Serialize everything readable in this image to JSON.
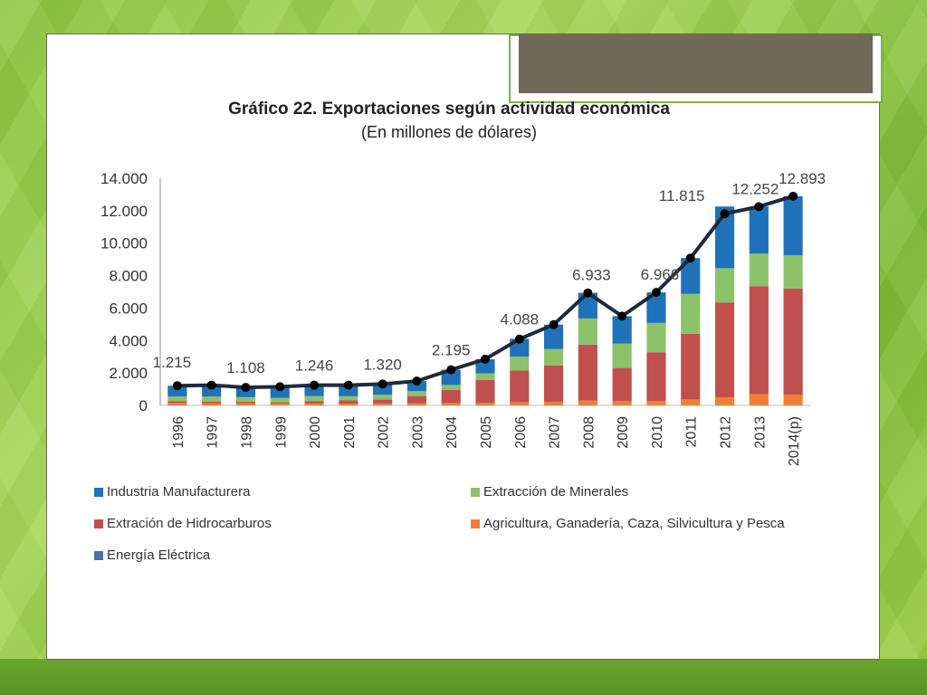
{
  "chart_data": {
    "type": "bar",
    "title": "Gráfico 22. Exportaciones según actividad económica",
    "subtitle": "(En millones de dólares)",
    "categories": [
      "1996",
      "1997",
      "1998",
      "1999",
      "2000",
      "2001",
      "2002",
      "2003",
      "2004",
      "2005",
      "2006",
      "2007",
      "2008",
      "2009",
      "2010",
      "2011",
      "2012",
      "2013",
      "2014(p)"
    ],
    "ylim": [
      0,
      14000
    ],
    "yticks": [
      "0",
      "2.000",
      "4.000",
      "6.000",
      "8.000",
      "10.000",
      "12.000",
      "14.000"
    ],
    "ytick_values": [
      0,
      2000,
      4000,
      6000,
      8000,
      10000,
      12000,
      14000
    ],
    "stacked": true,
    "series": [
      {
        "name": "Agricultura, Ganadería, Caza, Silvicultura y Pesca",
        "color": "#f07f35",
        "values": [
          150,
          140,
          130,
          120,
          120,
          110,
          120,
          130,
          150,
          170,
          200,
          220,
          300,
          260,
          280,
          370,
          500,
          700,
          650
        ]
      },
      {
        "name": "Extración de Hidrocarburos",
        "color": "#c0504d",
        "values": [
          120,
          100,
          90,
          80,
          150,
          200,
          250,
          450,
          800,
          1400,
          1950,
          2250,
          3450,
          2050,
          3000,
          4050,
          5850,
          6650,
          6550
        ]
      },
      {
        "name": "Extracción de Minerales",
        "color": "#8cc36a",
        "values": [
          270,
          300,
          280,
          260,
          300,
          250,
          280,
          290,
          300,
          400,
          850,
          1000,
          1600,
          1500,
          1800,
          2450,
          2100,
          2000,
          2050
        ]
      },
      {
        "name": "Energía Eléctrica",
        "color": "#4a6fa5",
        "values": [
          10,
          10,
          10,
          10,
          10,
          10,
          10,
          10,
          10,
          10,
          10,
          10,
          10,
          10,
          10,
          10,
          10,
          10,
          10
        ]
      },
      {
        "name": "Industria Manufacturera",
        "color": "#1f72b8",
        "values": [
          665,
          700,
          600,
          680,
          656,
          680,
          660,
          620,
          935,
          868,
          1100,
          1500,
          1583,
          1680,
          1876,
          2200,
          3800,
          2900,
          3633
        ]
      }
    ],
    "total_line": {
      "color": "#1f2a3a",
      "values": [
        1215,
        1250,
        1108,
        1150,
        1246,
        1250,
        1320,
        1500,
        2195,
        2850,
        4088,
        4980,
        6933,
        5500,
        6966,
        9080,
        11815,
        12252,
        12893
      ]
    },
    "data_labels": [
      {
        "index": 0,
        "text": "1.215"
      },
      {
        "index": 2,
        "text": "1.108"
      },
      {
        "index": 4,
        "text": "1.246"
      },
      {
        "index": 6,
        "text": "1.320"
      },
      {
        "index": 8,
        "text": "2.195"
      },
      {
        "index": 10,
        "text": "4.088"
      },
      {
        "index": 12,
        "text": "6.933"
      },
      {
        "index": 14,
        "text": "6.966"
      },
      {
        "index": 16,
        "text": "11.815"
      },
      {
        "index": 17,
        "text": "12.252"
      },
      {
        "index": 18,
        "text": "12.893"
      }
    ],
    "legend": {
      "placement": "bottom",
      "entries": [
        {
          "name": "Industria Manufacturera",
          "color": "#1f72b8"
        },
        {
          "name": "Extracción de Minerales",
          "color": "#8cc36a"
        },
        {
          "name": "Extración de Hidrocarburos",
          "color": "#c0504d"
        },
        {
          "name": "Agricultura, Ganadería, Caza, Silvicultura y Pesca",
          "color": "#f07f35"
        },
        {
          "name": "Energía Eléctrica",
          "color": "#4a6fa5"
        }
      ]
    },
    "grid": false
  }
}
